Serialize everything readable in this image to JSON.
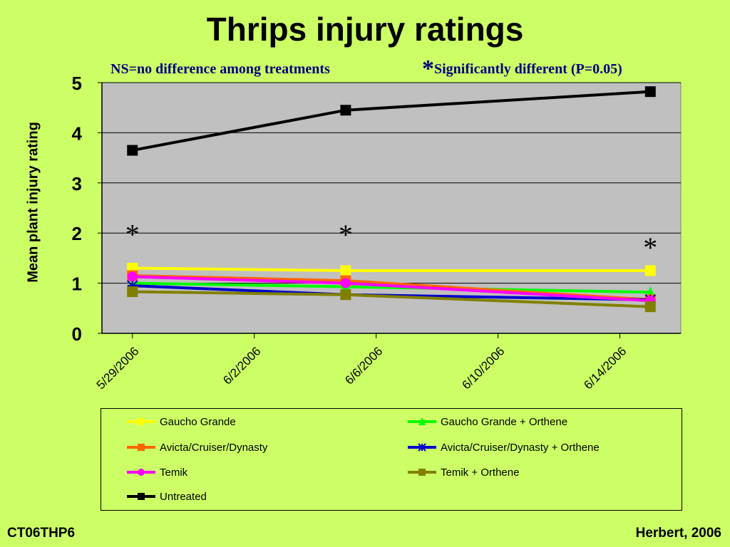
{
  "title": "Thrips injury ratings",
  "notes": {
    "ns": "NS=no difference among treatments",
    "sig_star": "*",
    "sig": "Significantly different (P=0.05)"
  },
  "footer": {
    "left": "CT06THP6",
    "right": "Herbert, 2006"
  },
  "colors": {
    "background": "#ccff66",
    "plot_area": "#c0c0c0",
    "note_text": "#000080"
  },
  "chart_data": {
    "type": "line",
    "ylabel": "Mean plant injury rating",
    "ylim": [
      0,
      5
    ],
    "yticks": [
      "0",
      "1",
      "2",
      "3",
      "4",
      "5"
    ],
    "xlim": [
      "5/28/2006",
      "6/16/2006"
    ],
    "xticks": [
      "5/29/2006",
      "6/2/2006",
      "6/6/2006",
      "6/10/2006",
      "6/14/2006"
    ],
    "grid": "horizontal",
    "legend_position": "bottom",
    "dates": [
      "5/29/2006",
      "6/5/2006",
      "6/15/2006"
    ],
    "significance": [
      "*",
      "*",
      "*"
    ],
    "series": [
      {
        "name": "Gaucho Grande",
        "color": "#ffff00",
        "marker": "square",
        "values": [
          1.3,
          1.25,
          1.25
        ]
      },
      {
        "name": "Gaucho Grande + Orthene",
        "color": "#00ff00",
        "marker": "triangle",
        "values": [
          1.0,
          0.93,
          0.82
        ]
      },
      {
        "name": "Avicta/Cruiser/Dynasty",
        "color": "#ff6600",
        "marker": "square",
        "values": [
          1.15,
          1.05,
          0.67
        ]
      },
      {
        "name": "Avicta/Cruiser/Dynasty + Orthene",
        "color": "#0000cc",
        "marker": "asterisk",
        "values": [
          0.95,
          0.77,
          0.67
        ]
      },
      {
        "name": "Temik",
        "color": "#ff00ff",
        "marker": "circle",
        "values": [
          1.13,
          1.0,
          0.65
        ]
      },
      {
        "name": "Temik + Orthene",
        "color": "#808000",
        "marker": "square",
        "values": [
          0.83,
          0.77,
          0.53
        ]
      },
      {
        "name": "Untreated",
        "color": "#000000",
        "marker": "square",
        "values": [
          3.65,
          4.45,
          4.82
        ]
      }
    ]
  }
}
